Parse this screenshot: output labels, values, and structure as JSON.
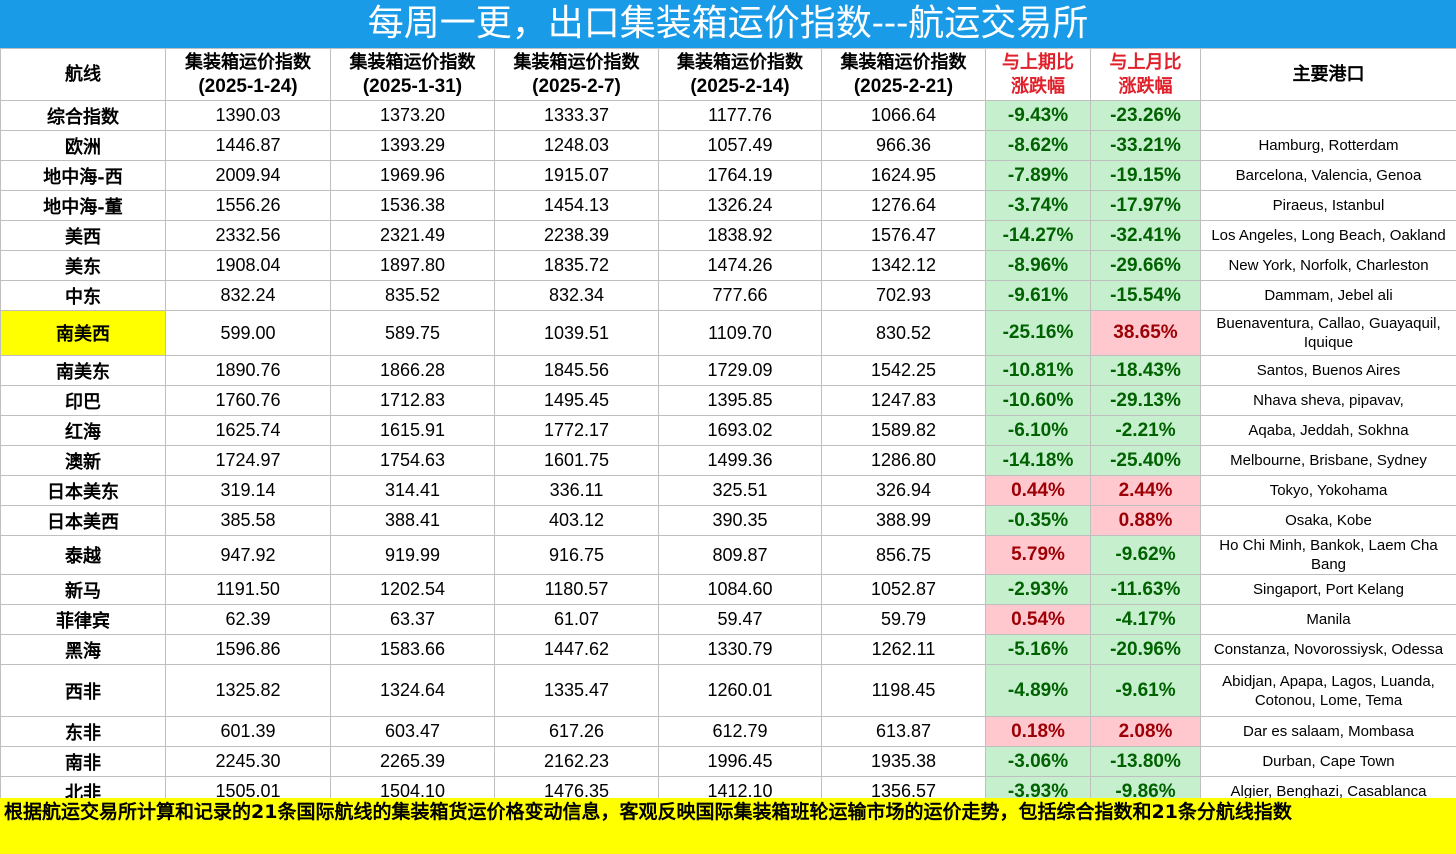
{
  "header": {
    "title": "每周一更，出口集装箱运价指数---航运交易所"
  },
  "table": {
    "columns": [
      [
        "航线"
      ],
      [
        "集装箱运价指数",
        "(2025-1-24)"
      ],
      [
        "集装箱运价指数",
        "(2025-1-31)"
      ],
      [
        "集装箱运价指数",
        "(2025-2-7)"
      ],
      [
        "集装箱运价指数",
        "(2025-2-14)"
      ],
      [
        "集装箱运价指数",
        "(2025-2-21)"
      ],
      [
        "与上期比",
        "涨跌幅"
      ],
      [
        "与上月比",
        "涨跌幅"
      ],
      [
        "主要港口"
      ]
    ],
    "rows": [
      [
        "综合指数",
        "1390.03",
        "1373.20",
        "1333.37",
        "1177.76",
        "1066.64",
        "-9.43%",
        "-23.26%"
      ],
      [
        "欧洲",
        "1446.87",
        "1393.29",
        "1248.03",
        "1057.49",
        "966.36",
        "-8.62%",
        "-33.21%",
        "Hamburg, Rotterdam"
      ],
      [
        "地中海-西",
        "2009.94",
        "1969.96",
        "1915.07",
        "1764.19",
        "1624.95",
        "-7.89%",
        "-19.15%",
        "Barcelona, Valencia, Genoa"
      ],
      [
        "地中海-董",
        "1556.26",
        "1536.38",
        "1454.13",
        "1326.24",
        "1276.64",
        "-3.74%",
        "-17.97%",
        "Piraeus, Istanbul"
      ],
      [
        "美西",
        "2332.56",
        "2321.49",
        "2238.39",
        "1838.92",
        "1576.47",
        "-14.27%",
        "-32.41%",
        "Los Angeles, Long Beach, Oakland"
      ],
      [
        "美东",
        "1908.04",
        "1897.80",
        "1835.72",
        "1474.26",
        "1342.12",
        "-8.96%",
        "-29.66%",
        "New York, Norfolk, Charleston"
      ],
      [
        "中东",
        "832.24",
        "835.52",
        "832.34",
        "777.66",
        "702.93",
        "-9.61%",
        "-15.54%",
        "Dammam, Jebel ali"
      ],
      [
        "南美西",
        "599.00",
        "589.75",
        "1039.51",
        "1109.70",
        "830.52",
        "-25.16%",
        "38.65%",
        "Buenaventura, Callao, Guayaquil, Iquique"
      ],
      [
        "南美东",
        "1890.76",
        "1866.28",
        "1845.56",
        "1729.09",
        "1542.25",
        "-10.81%",
        "-18.43%",
        "Santos, Buenos Aires"
      ],
      [
        "印巴",
        "1760.76",
        "1712.83",
        "1495.45",
        "1395.85",
        "1247.83",
        "-10.60%",
        "-29.13%",
        "Nhava sheva, pipavav,"
      ],
      [
        "红海",
        "1625.74",
        "1615.91",
        "1772.17",
        "1693.02",
        "1589.82",
        "-6.10%",
        "-2.21%",
        "Aqaba, Jeddah, Sokhna"
      ],
      [
        "澳新",
        "1724.97",
        "1754.63",
        "1601.75",
        "1499.36",
        "1286.80",
        "-14.18%",
        "-25.40%",
        "Melbourne, Brisbane, Sydney"
      ],
      [
        "日本美东",
        "319.14",
        "314.41",
        "336.11",
        "325.51",
        "326.94",
        "0.44%",
        "2.44%",
        "Tokyo, Yokohama"
      ],
      [
        "日本美西",
        "385.58",
        "388.41",
        "403.12",
        "390.35",
        "388.99",
        "-0.35%",
        "0.88%",
        "Osaka, Kobe"
      ],
      [
        "泰越",
        "947.92",
        "919.99",
        "916.75",
        "809.87",
        "856.75",
        "5.79%",
        "-9.62%",
        "Ho Chi Minh, Bankok, Laem Cha Bang"
      ],
      [
        "新马",
        "1191.50",
        "1202.54",
        "1180.57",
        "1084.60",
        "1052.87",
        "-2.93%",
        "-11.63%",
        "Singaport, Port Kelang"
      ],
      [
        "菲律宾",
        "62.39",
        "63.37",
        "61.07",
        "59.47",
        "59.79",
        "0.54%",
        "-4.17%",
        "Manila"
      ],
      [
        "黑海",
        "1596.86",
        "1583.66",
        "1447.62",
        "1330.79",
        "1262.11",
        "-5.16%",
        "-20.96%",
        "Constanza, Novorossiysk, Odessa"
      ],
      [
        "西非",
        "1325.82",
        "1324.64",
        "1335.47",
        "1260.01",
        "1198.45",
        "-4.89%",
        "-9.61%",
        "Abidjan, Apapa, Lagos, Luanda, Cotonou, Lome, Tema"
      ],
      [
        "东非",
        "601.39",
        "603.47",
        "617.26",
        "612.79",
        "613.87",
        "0.18%",
        "2.08%",
        "Dar es salaam, Mombasa"
      ],
      [
        "南非",
        "2245.30",
        "2265.39",
        "2162.23",
        "1996.45",
        "1935.38",
        "-3.06%",
        "-13.80%",
        "Durban, Cape Town"
      ],
      [
        "北非",
        "1505.01",
        "1504.10",
        "1476.35",
        "1412.10",
        "1356.57",
        "-3.93%",
        "-9.86%",
        "Algier, Benghazi, Casablanca"
      ]
    ]
  },
  "footer": {
    "text": "根据航运交易所计算和记录的21条国际航线的集装箱货运价格变动信息，客观反映国际集装箱班轮运输市场的运价走势，包括综合指数和21条分航线指数"
  }
}
